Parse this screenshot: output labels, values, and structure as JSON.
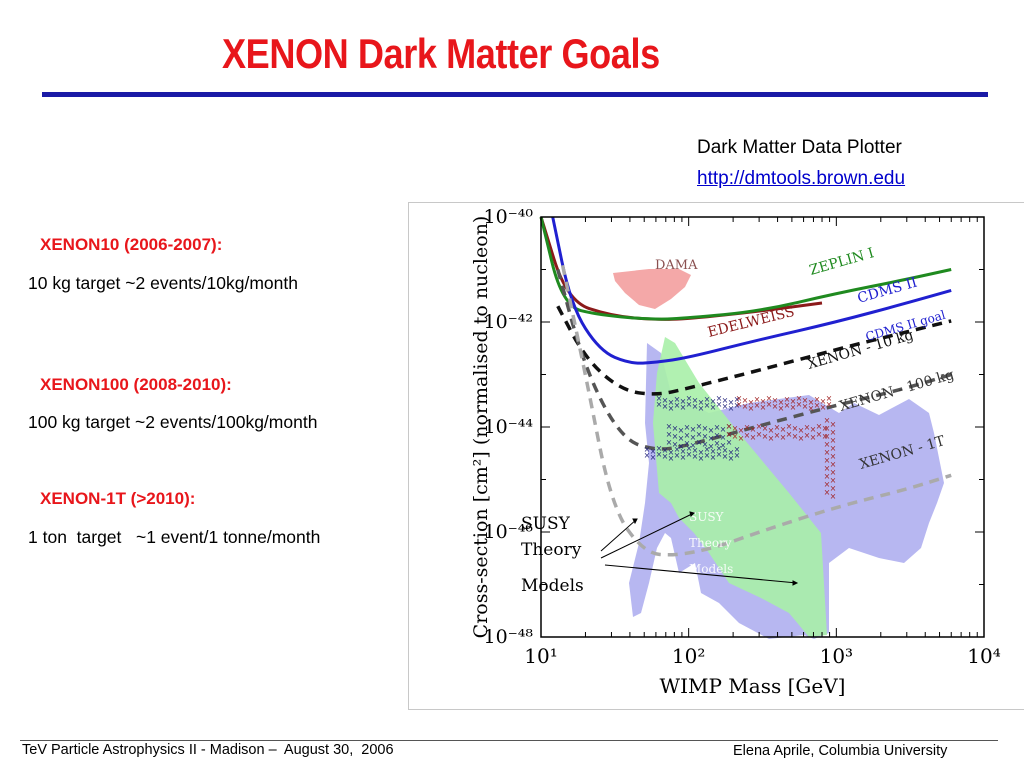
{
  "slide": {
    "title": "XENON Dark Matter Goals",
    "plotter_name": "Dark Matter Data Plotter",
    "plotter_url": "http://dmtools.brown.edu",
    "goals": [
      {
        "title": "XENON10 (2006-2007):",
        "desc": "10 kg target ~2 events/10kg/month"
      },
      {
        "title": "XENON100 (2008-2010):",
        "desc": "100 kg target ~2 events/100kg/month"
      },
      {
        "title": "XENON-1T (>2010):",
        "desc": "1 ton  target   ~1 event/1 tonne/month"
      }
    ],
    "susy_label": [
      "SUSY",
      "Theory",
      "Models"
    ],
    "footer_left": "TeV Particle Astrophysics II - Madison –  August 30,  2006",
    "footer_right": "Elena Aprile, Columbia University"
  },
  "chart_data": {
    "type": "line",
    "xlabel": "WIMP Mass [GeV]",
    "ylabel": "Cross-section [cm²] (normalised to nucleon)",
    "x_scale": "log",
    "y_scale": "log",
    "xlim": [
      10,
      10000
    ],
    "ylim": [
      1e-48,
      1e-40
    ],
    "x_ticks": [
      "10¹",
      "10²",
      "10³",
      "10⁴"
    ],
    "y_ticks": [
      "10⁻⁴⁰",
      "10⁻⁴²",
      "10⁻⁴⁴",
      "10⁻⁴⁶",
      "10⁻⁴⁸"
    ],
    "series": [
      {
        "name": "EDELWEISS",
        "style": "solid",
        "color": "#8b1a1a",
        "points": [
          [
            10,
            1e-40
          ],
          [
            15,
            2.5e-42
          ],
          [
            30,
            1.3e-42
          ],
          [
            60,
            1.1e-42
          ],
          [
            100,
            1.15e-42
          ],
          [
            300,
            1.6e-42
          ],
          [
            800,
            2.3e-42
          ]
        ]
      },
      {
        "name": "ZEPLIN I",
        "style": "solid",
        "color": "#1f8a1f",
        "points": [
          [
            10,
            1e-40
          ],
          [
            14,
            2e-42
          ],
          [
            25,
            1.35e-42
          ],
          [
            60,
            1.1e-42
          ],
          [
            100,
            1.2e-42
          ],
          [
            300,
            1.6e-42
          ],
          [
            1000,
            3.5e-42
          ],
          [
            3000,
            6.5e-42
          ],
          [
            6000,
            1e-41
          ]
        ]
      },
      {
        "name": "CDMS II",
        "style": "solid",
        "color": "#2020d0",
        "points": [
          [
            12,
            1e-40
          ],
          [
            16,
            2e-42
          ],
          [
            25,
            2.8e-43
          ],
          [
            40,
            1.6e-43
          ],
          [
            60,
            1.7e-43
          ],
          [
            100,
            2.1e-43
          ],
          [
            300,
            4.6e-43
          ],
          [
            1000,
            1e-42
          ],
          [
            3000,
            2.3e-42
          ],
          [
            6000,
            4e-42
          ]
        ]
      },
      {
        "name": "XENON - 10 kg",
        "style": "dashed",
        "color": "#111111",
        "points": [
          [
            13,
            2e-42
          ],
          [
            20,
            2e-43
          ],
          [
            35,
            5e-44
          ],
          [
            60,
            4e-44
          ],
          [
            100,
            5.5e-44
          ],
          [
            300,
            1.2e-43
          ],
          [
            1000,
            3e-43
          ],
          [
            3000,
            6.5e-43
          ],
          [
            6000,
            1.05e-42
          ]
        ]
      },
      {
        "name": "XENON - 100 kg",
        "style": "dashed",
        "color": "#555555",
        "points": [
          [
            13,
            1e-41
          ],
          [
            20,
            1.2e-43
          ],
          [
            35,
            6e-45
          ],
          [
            60,
            3.5e-45
          ],
          [
            100,
            4.5e-45
          ],
          [
            300,
            1.05e-44
          ],
          [
            1000,
            2.6e-44
          ],
          [
            3000,
            5.5e-44
          ],
          [
            6000,
            1e-43
          ]
        ]
      },
      {
        "name": "XENON - 1T",
        "style": "dashed",
        "color": "#aaaaaa",
        "points": [
          [
            14,
            1.2e-41
          ],
          [
            20,
            1e-43
          ],
          [
            30,
            3e-46
          ],
          [
            50,
            4e-47
          ],
          [
            80,
            3.5e-47
          ],
          [
            150,
            5e-47
          ],
          [
            300,
            1e-46
          ],
          [
            1000,
            3e-46
          ],
          [
            3000,
            6.5e-46
          ],
          [
            6000,
            1.2e-45
          ]
        ]
      }
    ],
    "regions": [
      {
        "name": "DAMA",
        "color": "#f4a0a0"
      },
      {
        "name": "SUSY Theory Models",
        "color": "#aaaaee"
      },
      {
        "name": "CDMS II goal"
      }
    ],
    "annotations": [
      "SUSY Theory Models"
    ]
  }
}
